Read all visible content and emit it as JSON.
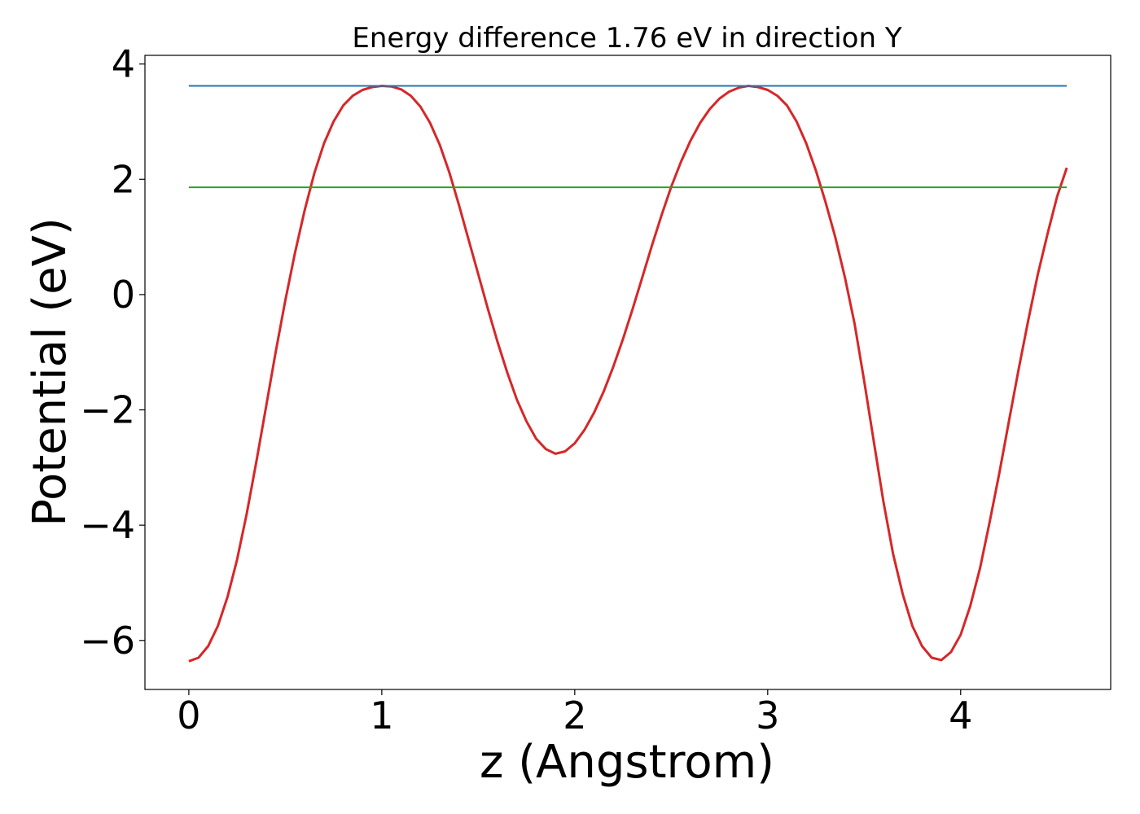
{
  "chart_data": {
    "type": "line",
    "title": "Energy difference 1.76 eV in direction Y",
    "xlabel": "z (Angstrom)",
    "ylabel": "Potential (eV)",
    "xlim": [
      -0.2275,
      4.7775
    ],
    "ylim": [
      -6.85,
      4.15
    ],
    "xticks": [
      0,
      1,
      2,
      3,
      4
    ],
    "yticks": [
      -6,
      -4,
      -2,
      0,
      2,
      4
    ],
    "xtick_labels": [
      "0",
      "1",
      "2",
      "3",
      "4"
    ],
    "ytick_labels": [
      "−6",
      "−4",
      "−2",
      "0",
      "2",
      "4"
    ],
    "grid": false,
    "legend": "none",
    "series": [
      {
        "kind": "curve",
        "color": "#d62728",
        "x": [
          0.0,
          0.05,
          0.1,
          0.15,
          0.2,
          0.25,
          0.3,
          0.35,
          0.4,
          0.45,
          0.5,
          0.55,
          0.6,
          0.65,
          0.7,
          0.75,
          0.8,
          0.85,
          0.9,
          0.95,
          1.0,
          1.05,
          1.1,
          1.15,
          1.2,
          1.25,
          1.3,
          1.35,
          1.4,
          1.45,
          1.5,
          1.55,
          1.6,
          1.65,
          1.7,
          1.75,
          1.8,
          1.85,
          1.9,
          1.95,
          2.0,
          2.05,
          2.1,
          2.15,
          2.2,
          2.25,
          2.3,
          2.35,
          2.4,
          2.45,
          2.5,
          2.55,
          2.6,
          2.65,
          2.7,
          2.75,
          2.8,
          2.85,
          2.9,
          2.95,
          3.0,
          3.05,
          3.1,
          3.15,
          3.2,
          3.25,
          3.3,
          3.35,
          3.4,
          3.45,
          3.5,
          3.55,
          3.6,
          3.65,
          3.7,
          3.75,
          3.8,
          3.85,
          3.9,
          3.95,
          4.0,
          4.05,
          4.1,
          4.15,
          4.2,
          4.25,
          4.3,
          4.35,
          4.4,
          4.45,
          4.5,
          4.55
        ],
        "y": [
          -6.36,
          -6.3,
          -6.1,
          -5.75,
          -5.25,
          -4.6,
          -3.8,
          -2.9,
          -1.95,
          -1.0,
          -0.1,
          0.72,
          1.46,
          2.1,
          2.62,
          3.0,
          3.28,
          3.45,
          3.55,
          3.6,
          3.62,
          3.61,
          3.56,
          3.45,
          3.26,
          2.98,
          2.6,
          2.12,
          1.55,
          0.95,
          0.35,
          -0.25,
          -0.82,
          -1.35,
          -1.82,
          -2.2,
          -2.5,
          -2.68,
          -2.76,
          -2.72,
          -2.58,
          -2.35,
          -2.05,
          -1.68,
          -1.25,
          -0.77,
          -0.25,
          0.3,
          0.85,
          1.38,
          1.87,
          2.3,
          2.67,
          2.98,
          3.22,
          3.4,
          3.52,
          3.59,
          3.62,
          3.6,
          3.55,
          3.45,
          3.28,
          3.0,
          2.62,
          2.15,
          1.6,
          1.0,
          0.3,
          -0.5,
          -1.5,
          -2.55,
          -3.6,
          -4.5,
          -5.2,
          -5.75,
          -6.1,
          -6.3,
          -6.34,
          -6.2,
          -5.9,
          -5.4,
          -4.75,
          -3.95,
          -3.1,
          -2.2,
          -1.3,
          -0.45,
          0.35,
          1.05,
          1.7,
          2.2
        ]
      },
      {
        "kind": "hline",
        "color": "#1f77b4",
        "y": 3.62,
        "x_range": [
          0.0,
          4.55
        ]
      },
      {
        "kind": "hline",
        "color": "#2ca02c",
        "y": 1.86,
        "x_range": [
          0.0,
          4.55
        ]
      }
    ]
  }
}
